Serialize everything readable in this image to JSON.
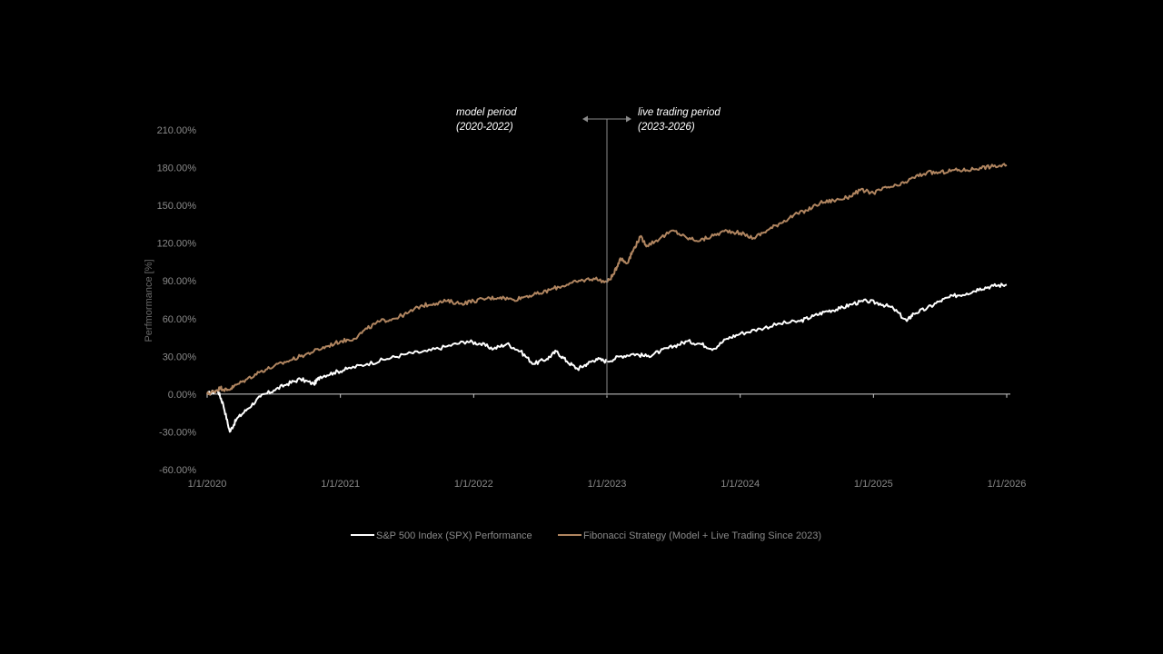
{
  "chart_data": {
    "type": "line",
    "title": "",
    "xlabel": "",
    "ylabel": "Perfmormance [%]",
    "ylim": [
      -60,
      210
    ],
    "xlim": [
      2020.0,
      2026.0
    ],
    "yticks": [
      {
        "value": 210,
        "label": "210.00%"
      },
      {
        "value": 180,
        "label": "180.00%"
      },
      {
        "value": 150,
        "label": "150.00%"
      },
      {
        "value": 120,
        "label": "120.00%"
      },
      {
        "value": 90,
        "label": "90.00%"
      },
      {
        "value": 60,
        "label": "60.00%"
      },
      {
        "value": 30,
        "label": "30.00%"
      },
      {
        "value": 0,
        "label": "0.00%"
      },
      {
        "value": -30,
        "label": "-30.00%"
      },
      {
        "value": -60,
        "label": "-60.00%"
      }
    ],
    "xticks": [
      {
        "value": 2020,
        "label": "1/1/2020"
      },
      {
        "value": 2021,
        "label": "1/1/2021"
      },
      {
        "value": 2022,
        "label": "1/1/2022"
      },
      {
        "value": 2023,
        "label": "1/1/2023"
      },
      {
        "value": 2024,
        "label": "1/1/2024"
      },
      {
        "value": 2025,
        "label": "1/1/2025"
      },
      {
        "value": 2026,
        "label": "1/1/2026"
      }
    ],
    "divider": {
      "x": 2023,
      "left_label_line1": "model period",
      "left_label_line2": "(2020-2022)",
      "right_label_line1": "live trading period",
      "right_label_line2": "(2023-2026)"
    },
    "series": [
      {
        "name": "S&P 500 Index (SPX) Performance",
        "color": "#ffffff",
        "points": [
          [
            2020.0,
            0
          ],
          [
            2020.08,
            3
          ],
          [
            2020.12,
            -8
          ],
          [
            2020.17,
            -30
          ],
          [
            2020.22,
            -20
          ],
          [
            2020.3,
            -12
          ],
          [
            2020.4,
            -2
          ],
          [
            2020.5,
            3
          ],
          [
            2020.6,
            8
          ],
          [
            2020.7,
            12
          ],
          [
            2020.8,
            8
          ],
          [
            2020.85,
            14
          ],
          [
            2020.95,
            17
          ],
          [
            2021.05,
            20
          ],
          [
            2021.2,
            24
          ],
          [
            2021.35,
            28
          ],
          [
            2021.5,
            32
          ],
          [
            2021.65,
            34
          ],
          [
            2021.8,
            38
          ],
          [
            2021.95,
            42
          ],
          [
            2022.05,
            40
          ],
          [
            2022.15,
            36
          ],
          [
            2022.25,
            40
          ],
          [
            2022.35,
            34
          ],
          [
            2022.45,
            24
          ],
          [
            2022.55,
            28
          ],
          [
            2022.62,
            34
          ],
          [
            2022.7,
            26
          ],
          [
            2022.78,
            20
          ],
          [
            2022.85,
            24
          ],
          [
            2022.92,
            28
          ],
          [
            2023.0,
            26
          ],
          [
            2023.1,
            30
          ],
          [
            2023.2,
            32
          ],
          [
            2023.3,
            30
          ],
          [
            2023.4,
            34
          ],
          [
            2023.5,
            38
          ],
          [
            2023.6,
            42
          ],
          [
            2023.7,
            40
          ],
          [
            2023.8,
            36
          ],
          [
            2023.9,
            44
          ],
          [
            2024.0,
            48
          ],
          [
            2024.15,
            52
          ],
          [
            2024.3,
            56
          ],
          [
            2024.45,
            58
          ],
          [
            2024.55,
            62
          ],
          [
            2024.65,
            66
          ],
          [
            2024.75,
            68
          ],
          [
            2024.85,
            72
          ],
          [
            2024.95,
            74
          ],
          [
            2025.05,
            72
          ],
          [
            2025.15,
            68
          ],
          [
            2025.25,
            58
          ],
          [
            2025.3,
            64
          ],
          [
            2025.4,
            68
          ],
          [
            2025.5,
            74
          ],
          [
            2025.6,
            78
          ],
          [
            2025.7,
            80
          ],
          [
            2025.8,
            84
          ],
          [
            2025.9,
            86
          ],
          [
            2026.0,
            87
          ]
        ]
      },
      {
        "name": "Fibonacci Strategy (Model + Live Trading Since 2023)",
        "color": "#b08560",
        "points": [
          [
            2020.0,
            0
          ],
          [
            2020.05,
            2
          ],
          [
            2020.1,
            5
          ],
          [
            2020.15,
            3
          ],
          [
            2020.2,
            6
          ],
          [
            2020.3,
            12
          ],
          [
            2020.4,
            18
          ],
          [
            2020.5,
            22
          ],
          [
            2020.6,
            26
          ],
          [
            2020.7,
            30
          ],
          [
            2020.8,
            34
          ],
          [
            2020.9,
            38
          ],
          [
            2021.0,
            42
          ],
          [
            2021.1,
            44
          ],
          [
            2021.2,
            52
          ],
          [
            2021.3,
            58
          ],
          [
            2021.4,
            60
          ],
          [
            2021.5,
            64
          ],
          [
            2021.6,
            70
          ],
          [
            2021.7,
            72
          ],
          [
            2021.8,
            74
          ],
          [
            2021.9,
            72
          ],
          [
            2022.0,
            74
          ],
          [
            2022.1,
            76
          ],
          [
            2022.2,
            77
          ],
          [
            2022.3,
            75
          ],
          [
            2022.4,
            78
          ],
          [
            2022.5,
            80
          ],
          [
            2022.6,
            84
          ],
          [
            2022.7,
            87
          ],
          [
            2022.8,
            90
          ],
          [
            2022.9,
            92
          ],
          [
            2023.0,
            89
          ],
          [
            2023.05,
            95
          ],
          [
            2023.1,
            108
          ],
          [
            2023.15,
            104
          ],
          [
            2023.2,
            115
          ],
          [
            2023.25,
            125
          ],
          [
            2023.3,
            118
          ],
          [
            2023.4,
            124
          ],
          [
            2023.5,
            130
          ],
          [
            2023.6,
            124
          ],
          [
            2023.7,
            122
          ],
          [
            2023.8,
            126
          ],
          [
            2023.9,
            130
          ],
          [
            2024.0,
            128
          ],
          [
            2024.1,
            124
          ],
          [
            2024.2,
            130
          ],
          [
            2024.3,
            136
          ],
          [
            2024.4,
            142
          ],
          [
            2024.5,
            146
          ],
          [
            2024.6,
            152
          ],
          [
            2024.7,
            154
          ],
          [
            2024.8,
            156
          ],
          [
            2024.9,
            162
          ],
          [
            2025.0,
            160
          ],
          [
            2025.1,
            164
          ],
          [
            2025.2,
            166
          ],
          [
            2025.3,
            172
          ],
          [
            2025.4,
            176
          ],
          [
            2025.5,
            176
          ],
          [
            2025.6,
            178
          ],
          [
            2025.7,
            178
          ],
          [
            2025.8,
            180
          ],
          [
            2025.9,
            181
          ],
          [
            2026.0,
            182
          ]
        ]
      }
    ]
  }
}
